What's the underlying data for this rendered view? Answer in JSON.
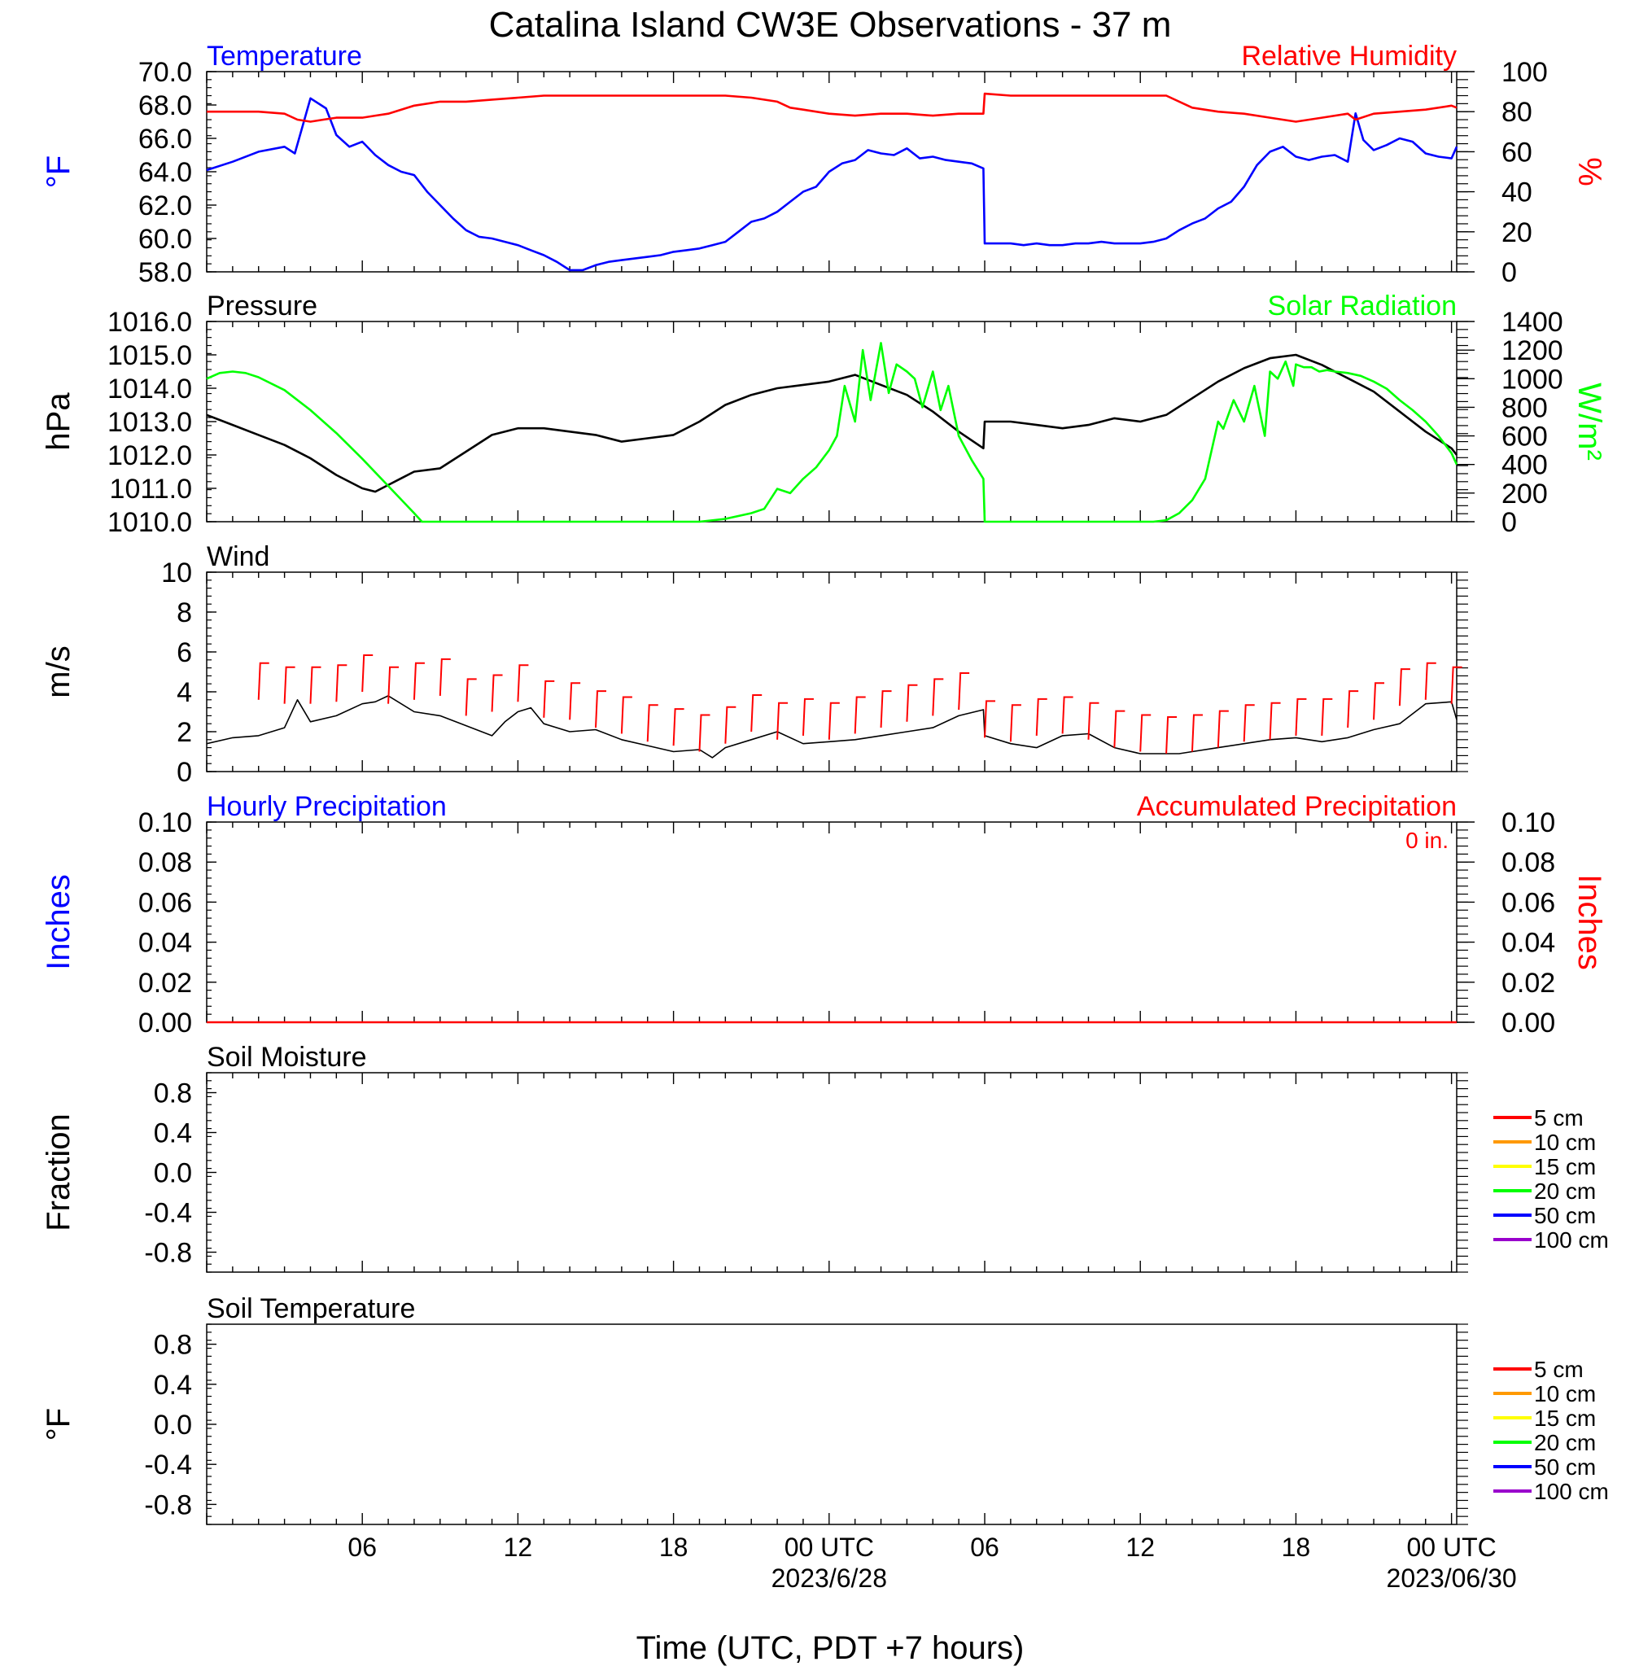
{
  "page": {
    "title": "Catalina Island CW3E Observations - 37 m",
    "xlabel": "Time (UTC, PDT +7 hours)",
    "x_ticks": [
      {
        "hour": 6,
        "label": "06",
        "sub": ""
      },
      {
        "hour": 12,
        "label": "12",
        "sub": ""
      },
      {
        "hour": 18,
        "label": "18",
        "sub": ""
      },
      {
        "hour": 24,
        "label": "00 UTC",
        "sub": "2023/6/28"
      },
      {
        "hour": 30,
        "label": "06",
        "sub": ""
      },
      {
        "hour": 36,
        "label": "12",
        "sub": ""
      },
      {
        "hour": 42,
        "label": "18",
        "sub": ""
      },
      {
        "hour": 48,
        "label": "00 UTC",
        "sub": "2023/06/30"
      }
    ]
  },
  "chart_data": [
    {
      "type": "line",
      "left_title": "Temperature",
      "right_title": "Relative Humidity",
      "ylabel_left": "°F",
      "ylabel_right": "%",
      "ylim_left": [
        58,
        70
      ],
      "ylim_right": [
        0,
        100
      ],
      "yticks_left": [
        "70.0",
        "68.0",
        "66.0",
        "64.0",
        "62.0",
        "60.0",
        "58.0"
      ],
      "yticks_right": [
        "100",
        "80",
        "60",
        "40",
        "20",
        "0"
      ],
      "colors": {
        "left": "#0000ff",
        "right": "#ff0000"
      },
      "series": [
        {
          "name": "Temperature",
          "axis": "left",
          "color": "#0000ff",
          "x": [
            0,
            1,
            2,
            3,
            3.4,
            4,
            4.6,
            5,
            5.5,
            6,
            6.5,
            7,
            7.5,
            8,
            8.5,
            9,
            9.5,
            10,
            10.5,
            11,
            11.5,
            12,
            12.5,
            13,
            13.5,
            14,
            14.5,
            15,
            15.5,
            16,
            16.5,
            17,
            17.5,
            18,
            18.5,
            19,
            19.5,
            20,
            20.5,
            21,
            21.5,
            22,
            22.5,
            23,
            23.5,
            24,
            24.5,
            25,
            25.5,
            26,
            26.5,
            27,
            27.5,
            28,
            28.5,
            29,
            29.5,
            29.95,
            30,
            30.5,
            31,
            31.5,
            32,
            32.5,
            33,
            33.5,
            34,
            34.5,
            35,
            35.5,
            36,
            36.5,
            37,
            37.5,
            38,
            38.5,
            39,
            39.5,
            40,
            40.5,
            41,
            41.5,
            42,
            42.5,
            43,
            43.5,
            44,
            44.3,
            44.6,
            45,
            45.5,
            46,
            46.5,
            47,
            47.5,
            48,
            48.2
          ],
          "y": [
            64.1,
            64.6,
            65.2,
            65.5,
            65.1,
            68.4,
            67.8,
            66.2,
            65.5,
            65.8,
            65.0,
            64.4,
            64.0,
            63.8,
            62.8,
            62.0,
            61.2,
            60.5,
            60.1,
            60.0,
            59.8,
            59.6,
            59.3,
            59.0,
            58.6,
            58.1,
            58.1,
            58.4,
            58.6,
            58.7,
            58.8,
            58.9,
            59.0,
            59.2,
            59.3,
            59.4,
            59.6,
            59.8,
            60.4,
            61.0,
            61.2,
            61.6,
            62.2,
            62.8,
            63.1,
            64.0,
            64.5,
            64.7,
            65.3,
            65.1,
            65.0,
            65.4,
            64.8,
            64.9,
            64.7,
            64.6,
            64.5,
            64.2,
            59.7,
            59.7,
            59.7,
            59.6,
            59.7,
            59.6,
            59.6,
            59.7,
            59.7,
            59.8,
            59.7,
            59.7,
            59.7,
            59.8,
            60.0,
            60.5,
            60.9,
            61.2,
            61.8,
            62.2,
            63.1,
            64.4,
            65.2,
            65.5,
            64.9,
            64.7,
            64.9,
            65.0,
            64.6,
            67.5,
            65.9,
            65.3,
            65.6,
            66.0,
            65.8,
            65.1,
            64.9,
            64.8,
            65.5
          ]
        },
        {
          "name": "Relative Humidity",
          "axis": "right",
          "color": "#ff0000",
          "x": [
            0,
            1,
            2,
            3,
            3.5,
            4,
            4.5,
            5,
            5.5,
            6,
            6.5,
            7,
            8,
            9,
            10,
            11,
            12,
            13,
            14,
            15,
            16,
            17,
            18,
            19,
            20,
            21,
            22,
            22.5,
            23,
            24,
            25,
            26,
            27,
            28,
            29,
            29.95,
            30,
            31,
            32,
            33,
            34,
            35,
            36,
            37,
            38,
            39,
            40,
            41,
            42,
            43,
            44,
            44.3,
            45,
            46,
            47,
            48,
            48.2
          ],
          "y": [
            80,
            80,
            80,
            79,
            76,
            75,
            76,
            77,
            77,
            77,
            78,
            79,
            83,
            85,
            85,
            86,
            87,
            88,
            88,
            88,
            88,
            88,
            88,
            88,
            88,
            87,
            85,
            82,
            81,
            79,
            78,
            79,
            79,
            78,
            79,
            79,
            89,
            88,
            88,
            88,
            88,
            88,
            88,
            88,
            82,
            80,
            79,
            77,
            75,
            77,
            79,
            76,
            79,
            80,
            81,
            83,
            82
          ]
        }
      ]
    },
    {
      "type": "line",
      "left_title": "Pressure",
      "right_title": "Solar Radiation",
      "ylabel_left": "hPa",
      "ylabel_right": "W/m²",
      "ylim_left": [
        1010,
        1016
      ],
      "ylim_right": [
        0,
        1400
      ],
      "yticks_left": [
        "1016.0",
        "1015.0",
        "1014.0",
        "1013.0",
        "1012.0",
        "1011.0",
        "1010.0"
      ],
      "yticks_right": [
        "1400",
        "1200",
        "1000",
        "800",
        "600",
        "400",
        "200",
        "0"
      ],
      "colors": {
        "left": "#000000",
        "right": "#00ff00"
      },
      "series": [
        {
          "name": "Pressure",
          "axis": "left",
          "color": "#000000",
          "x": [
            0,
            1,
            2,
            3,
            4,
            5,
            6,
            6.5,
            7,
            7.5,
            8,
            9,
            10,
            11,
            12,
            13,
            14,
            15,
            16,
            17,
            18,
            19,
            20,
            21,
            22,
            23,
            24,
            25,
            26,
            27,
            28,
            29,
            29.95,
            30,
            31,
            32,
            33,
            34,
            35,
            36,
            37,
            38,
            39,
            40,
            41,
            42,
            43,
            44,
            45,
            46,
            47,
            48,
            48.2
          ],
          "y": [
            1013.2,
            1012.9,
            1012.6,
            1012.3,
            1011.9,
            1011.4,
            1011.0,
            1010.9,
            1011.1,
            1011.3,
            1011.5,
            1011.6,
            1012.1,
            1012.6,
            1012.8,
            1012.8,
            1012.7,
            1012.6,
            1012.4,
            1012.5,
            1012.6,
            1013.0,
            1013.5,
            1013.8,
            1014.0,
            1014.1,
            1014.2,
            1014.4,
            1014.1,
            1013.8,
            1013.3,
            1012.7,
            1012.2,
            1013.0,
            1013.0,
            1012.9,
            1012.8,
            1012.9,
            1013.1,
            1013.0,
            1013.2,
            1013.7,
            1014.2,
            1014.6,
            1014.9,
            1015.0,
            1014.7,
            1014.3,
            1013.9,
            1013.3,
            1012.7,
            1012.2,
            1012.0
          ]
        },
        {
          "name": "Solar Radiation",
          "axis": "right",
          "color": "#00ff00",
          "x": [
            0,
            0.5,
            1,
            1.5,
            2,
            3,
            4,
            5,
            6,
            7,
            8,
            8.3,
            10,
            12,
            14,
            16,
            18,
            19,
            20,
            21,
            21.5,
            22,
            22.5,
            23,
            23.5,
            24,
            24.3,
            24.6,
            25,
            25.3,
            25.6,
            26,
            26.3,
            26.6,
            27,
            27.3,
            27.6,
            28,
            28.3,
            28.6,
            29,
            29.5,
            29.95,
            30,
            31,
            32,
            33,
            34,
            35,
            36,
            36.5,
            37,
            37.5,
            38,
            38.5,
            39,
            39.2,
            39.6,
            40,
            40.4,
            40.8,
            41,
            41.3,
            41.6,
            41.9,
            42,
            42.3,
            42.6,
            42.9,
            43.2,
            43.5,
            44,
            44.5,
            45,
            45.5,
            46,
            46.5,
            47,
            47.5,
            48,
            48.2
          ],
          "y": [
            1000,
            1040,
            1050,
            1040,
            1010,
            920,
            780,
            620,
            440,
            250,
            60,
            0,
            0,
            0,
            0,
            0,
            0,
            0,
            20,
            60,
            90,
            230,
            200,
            300,
            380,
            500,
            600,
            950,
            700,
            1200,
            850,
            1250,
            900,
            1100,
            1050,
            1000,
            800,
            1050,
            780,
            950,
            600,
            430,
            300,
            0,
            0,
            0,
            0,
            0,
            0,
            0,
            0,
            10,
            60,
            150,
            300,
            700,
            650,
            850,
            700,
            950,
            600,
            1050,
            1000,
            1120,
            950,
            1100,
            1080,
            1080,
            1050,
            1060,
            1050,
            1040,
            1020,
            980,
            930,
            850,
            780,
            700,
            600,
            480,
            400
          ]
        }
      ]
    },
    {
      "type": "line",
      "left_title": "Wind",
      "ylabel_left": "m/s",
      "ylim_left": [
        0,
        10
      ],
      "yticks_left": [
        "10",
        "8",
        "6",
        "4",
        "2",
        "0"
      ],
      "series": [
        {
          "name": "Wind",
          "axis": "left",
          "color": "#000000",
          "x": [
            0,
            1,
            2,
            3,
            3.5,
            4,
            5,
            6,
            6.5,
            7,
            8,
            9,
            10,
            11,
            11.5,
            12,
            12.5,
            13,
            14,
            15,
            16,
            17,
            18,
            19,
            19.5,
            20,
            21,
            22,
            23,
            24,
            25,
            26,
            27,
            28,
            29,
            29.95,
            30,
            31,
            32,
            33,
            34,
            35,
            36,
            37,
            37.5,
            38,
            39,
            40,
            41,
            42,
            43,
            44,
            45,
            46,
            47,
            48,
            48.2
          ],
          "y": [
            1.4,
            1.7,
            1.8,
            2.2,
            3.6,
            2.5,
            2.8,
            3.4,
            3.5,
            3.8,
            3.0,
            2.8,
            2.3,
            1.8,
            2.5,
            3.0,
            3.2,
            2.4,
            2.0,
            2.1,
            1.6,
            1.3,
            1.0,
            1.1,
            0.7,
            1.2,
            1.6,
            2.0,
            1.4,
            1.5,
            1.6,
            1.8,
            2.0,
            2.2,
            2.8,
            3.1,
            1.8,
            1.4,
            1.2,
            1.8,
            1.9,
            1.2,
            0.9,
            0.9,
            0.9,
            1.0,
            1.2,
            1.4,
            1.6,
            1.7,
            1.5,
            1.7,
            2.1,
            2.4,
            3.4,
            3.5,
            2.6
          ]
        },
        {
          "name": "Barbs",
          "axis": "left",
          "color": "#ff0000",
          "x": [
            2,
            3,
            4,
            5,
            6,
            7,
            8,
            9,
            10,
            11,
            12,
            13,
            14,
            15,
            16,
            17,
            18,
            19,
            20,
            21,
            22,
            23,
            24,
            25,
            26,
            27,
            28,
            29,
            30,
            31,
            32,
            33,
            34,
            35,
            36,
            37,
            38,
            39,
            40,
            41,
            42,
            43,
            44,
            45,
            46,
            47,
            48
          ],
          "y": [
            3.6,
            3.4,
            3.4,
            3.5,
            4.0,
            3.4,
            3.6,
            3.8,
            2.8,
            3.0,
            3.5,
            2.7,
            2.6,
            2.2,
            1.9,
            1.5,
            1.3,
            1.0,
            1.4,
            2.0,
            1.6,
            1.8,
            1.6,
            1.9,
            2.2,
            2.5,
            2.8,
            3.1,
            1.7,
            1.5,
            1.8,
            1.9,
            1.6,
            1.2,
            1.0,
            0.9,
            1.0,
            1.2,
            1.5,
            1.6,
            1.8,
            1.8,
            2.2,
            2.6,
            3.3,
            3.6,
            3.4
          ]
        }
      ]
    },
    {
      "type": "line",
      "left_title": "Hourly Precipitation",
      "right_title": "Accumulated Precipitation",
      "annotation": "0 in.",
      "ylabel_left": "Inches",
      "ylabel_right": "Inches",
      "ylim_left": [
        0,
        0.1
      ],
      "ylim_right": [
        0,
        0.1
      ],
      "yticks_left": [
        "0.10",
        "0.08",
        "0.06",
        "0.04",
        "0.02",
        "0.00"
      ],
      "yticks_right": [
        "0.10",
        "0.08",
        "0.06",
        "0.04",
        "0.02",
        "0.00"
      ],
      "colors": {
        "left": "#0000ff",
        "right": "#ff0000"
      },
      "series": [
        {
          "name": "Accumulated Precipitation",
          "axis": "right",
          "color": "#ff0000",
          "x": [
            0,
            48.2
          ],
          "y": [
            0,
            0
          ]
        }
      ]
    },
    {
      "type": "line",
      "left_title": "Soil Moisture",
      "ylabel_left": "Fraction",
      "ylim_left": [
        -1,
        1
      ],
      "yticks_left": [
        "0.8",
        "0.4",
        "0.0",
        "-0.4",
        "-0.8"
      ],
      "legend": [
        {
          "label": "5 cm",
          "color": "#ff0000"
        },
        {
          "label": "10 cm",
          "color": "#ff9900"
        },
        {
          "label": "15 cm",
          "color": "#ffff00"
        },
        {
          "label": "20 cm",
          "color": "#00ff00"
        },
        {
          "label": "50 cm",
          "color": "#0000ff"
        },
        {
          "label": "100 cm",
          "color": "#9900cc"
        }
      ],
      "series": []
    },
    {
      "type": "line",
      "left_title": "Soil Temperature",
      "ylabel_left": "°F",
      "ylim_left": [
        -1,
        1
      ],
      "yticks_left": [
        "0.8",
        "0.4",
        "0.0",
        "-0.4",
        "-0.8"
      ],
      "legend": [
        {
          "label": "5 cm",
          "color": "#ff0000"
        },
        {
          "label": "10 cm",
          "color": "#ff9900"
        },
        {
          "label": "15 cm",
          "color": "#ffff00"
        },
        {
          "label": "20 cm",
          "color": "#00ff00"
        },
        {
          "label": "50 cm",
          "color": "#0000ff"
        },
        {
          "label": "100 cm",
          "color": "#9900cc"
        }
      ],
      "series": []
    }
  ]
}
